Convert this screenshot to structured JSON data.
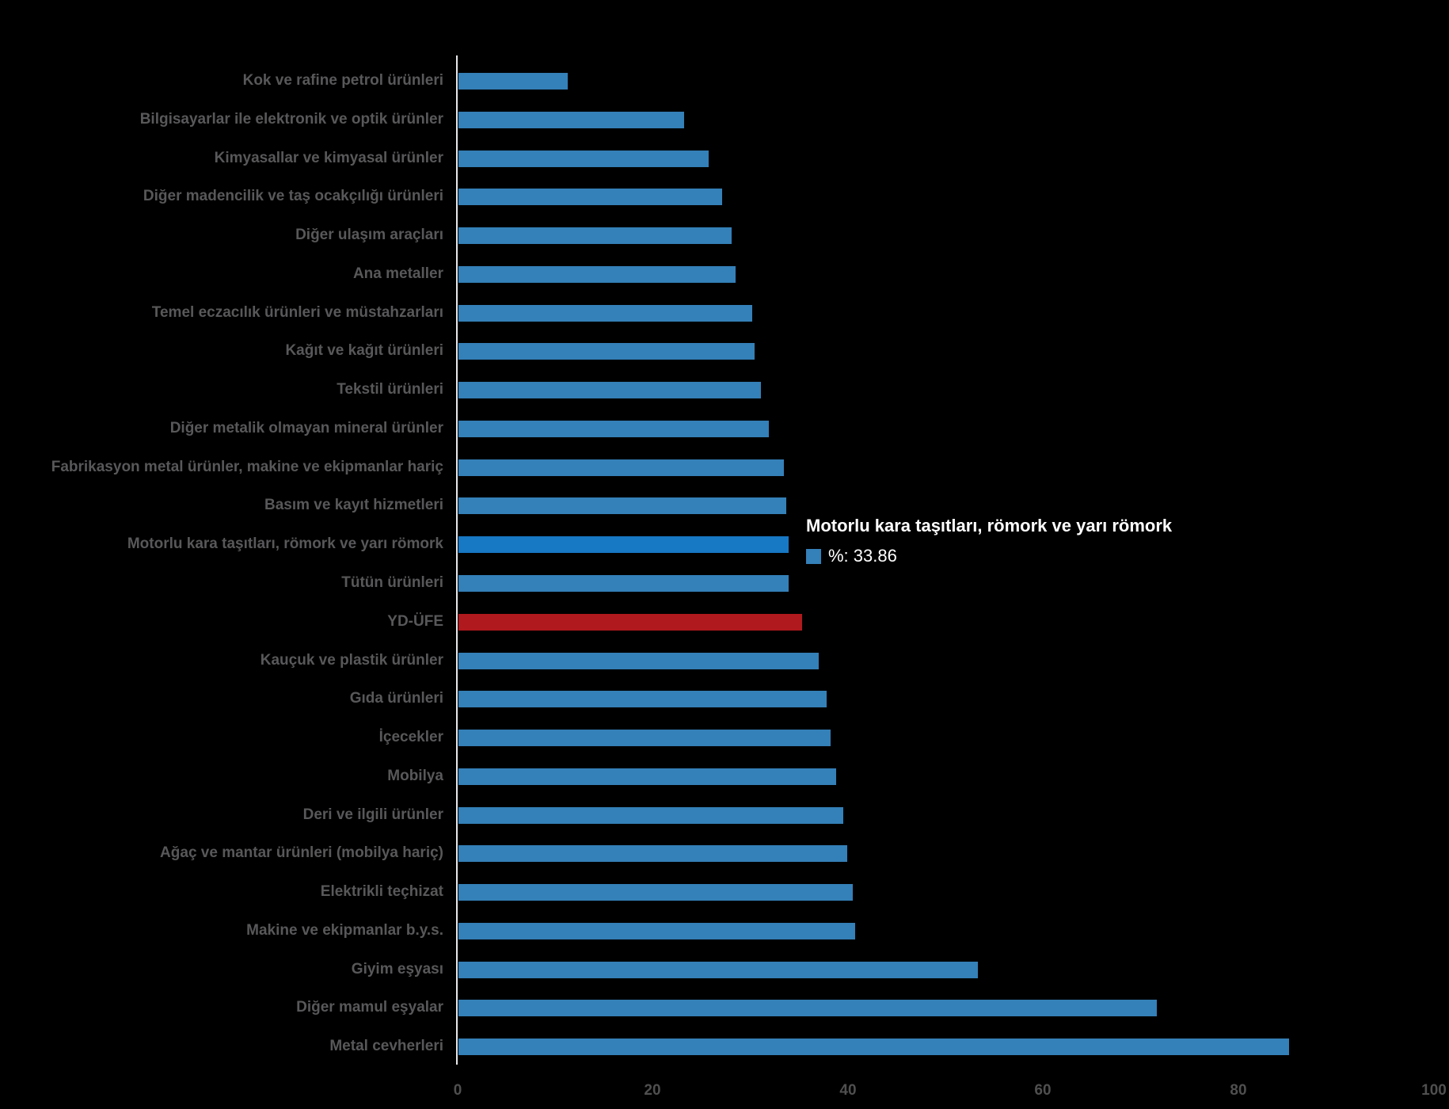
{
  "chart_data": {
    "type": "bar",
    "orientation": "horizontal",
    "title": "",
    "xlabel": "",
    "ylabel": "",
    "categories": [
      "Kok ve rafine petrol ürünleri",
      "Bilgisayarlar ile elektronik ve optik ürünler",
      "Kimyasallar ve kimyasal ürünler",
      "Diğer madencilik ve taş ocakçılığı ürünleri",
      "Diğer ulaşım araçları",
      "Ana metaller",
      "Temel eczacılık ürünleri ve müstahzarları",
      "Kağıt ve kağıt ürünleri",
      "Tekstil ürünleri",
      "Diğer metalik olmayan mineral ürünler",
      "Fabrikasyon metal ürünler, makine ve ekipmanlar hariç",
      "Basım ve kayıt hizmetleri",
      "Motorlu kara taşıtları, römork ve yarı römork",
      "Tütün ürünleri",
      "YD-ÜFE",
      "Kauçuk ve plastik ürünler",
      "Gıda ürünleri",
      "İçecekler",
      "Mobilya",
      "Deri ve ilgili ürünler",
      "Ağaç ve mantar ürünleri (mobilya hariç)",
      "Elektrikli teçhizat",
      "Makine ve ekipmanlar b.y.s.",
      "Giyim eşyası",
      "Diğer mamul eşyalar",
      "Metal cevherleri"
    ],
    "series": [
      {
        "name": "%",
        "values": [
          11.2,
          23.1,
          25.6,
          27.0,
          28.0,
          28.4,
          30.1,
          30.3,
          31.0,
          31.8,
          33.3,
          33.6,
          33.86,
          33.8,
          35.2,
          36.9,
          37.7,
          38.1,
          38.7,
          39.4,
          39.8,
          40.4,
          40.6,
          53.2,
          71.5,
          85.1
        ]
      }
    ],
    "xlim": [
      0,
      100
    ],
    "x_ticks": [
      0,
      20,
      40,
      60,
      80,
      100
    ],
    "grid": false,
    "legend_position": "none",
    "highlight_index": 12,
    "special_index": 14
  },
  "tooltip": {
    "title": "Motorlu kara taşıtları, römork ve yarı römork",
    "value": "%: 33.86"
  },
  "colors": {
    "background": "#000000",
    "bar": "#3480B8",
    "bar_hover": "#1778C4",
    "bar_special": "#B0191D",
    "category_label": "#58585A",
    "tick_label": "#4F4F4F",
    "axis_line": "#E8E8EC",
    "tooltip_text": "#FFFFFF"
  }
}
